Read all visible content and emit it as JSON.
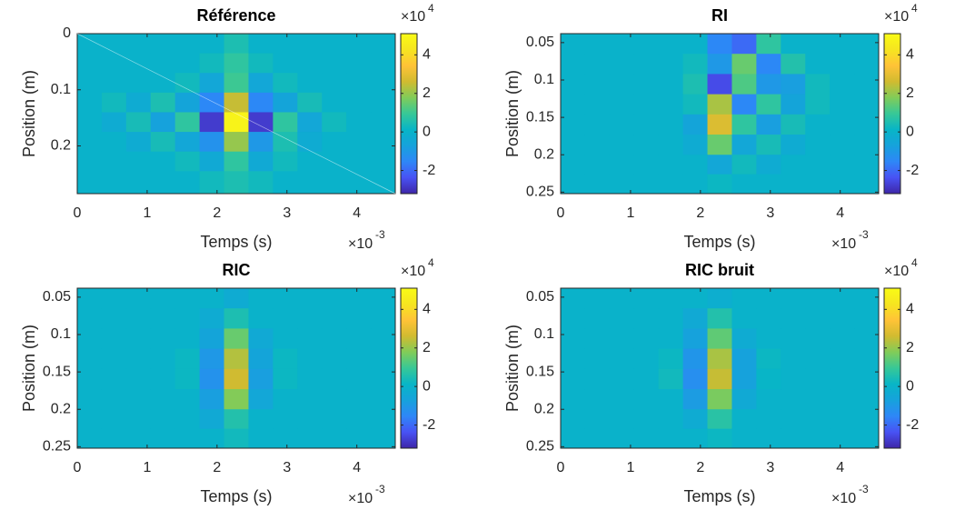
{
  "chart_data": [
    {
      "type": "heatmap",
      "title": "Référence",
      "xlabel": "Temps (s)",
      "ylabel": "Position (m)",
      "xlim": [
        0,
        4.55
      ],
      "ylim": [
        0,
        0.285
      ],
      "y_reversed": true,
      "xticks": [
        0,
        1,
        2,
        3,
        4
      ],
      "yticks": [
        0,
        0.1,
        0.2
      ],
      "x_exponent": {
        "base": "×10",
        "power": "-3"
      },
      "colormap": "parula",
      "clim": [
        -3.2,
        5.1
      ],
      "cticks": [
        -2,
        0,
        2,
        4
      ],
      "c_exponent": {
        "base": "×10",
        "power": "4"
      },
      "xbins": [
        0,
        0.35,
        0.7,
        1.05,
        1.4,
        1.75,
        2.1,
        2.45,
        2.8,
        3.15,
        3.5,
        3.85,
        4.2,
        4.55
      ],
      "ybins": [
        0,
        0.035,
        0.07,
        0.105,
        0.14,
        0.175,
        0.21,
        0.245,
        0.285
      ],
      "z": [
        [
          0,
          0,
          0,
          0,
          0,
          0,
          0.5,
          0,
          0,
          0,
          0,
          0,
          0
        ],
        [
          0,
          0,
          0,
          0,
          0,
          0.3,
          0.8,
          0.3,
          0,
          0,
          0,
          0,
          0
        ],
        [
          0,
          0,
          0,
          0,
          0.3,
          -0.5,
          1.0,
          -0.5,
          0.3,
          0,
          0,
          0,
          0
        ],
        [
          0,
          0.3,
          -0.3,
          0.5,
          -0.6,
          -1.5,
          2.5,
          -1.5,
          -0.6,
          0.4,
          0,
          0,
          0
        ],
        [
          0,
          -0.3,
          0.4,
          -0.7,
          0.8,
          -2.8,
          4.8,
          -2.8,
          0.8,
          -0.5,
          0.3,
          0,
          0
        ],
        [
          0,
          0,
          -0.3,
          0.4,
          -0.5,
          -1.2,
          2.0,
          -1.0,
          0.5,
          -0.3,
          0,
          0,
          0
        ],
        [
          0,
          0,
          0,
          0,
          0.3,
          -0.4,
          0.8,
          -0.4,
          0.3,
          0,
          0,
          0,
          0
        ],
        [
          0,
          0,
          0,
          0,
          0,
          0.3,
          0.5,
          0.3,
          0,
          0,
          0,
          0,
          0
        ]
      ]
    },
    {
      "type": "heatmap",
      "title": "RI",
      "xlabel": "Temps (s)",
      "ylabel": "Position (m)",
      "xlim": [
        0,
        4.55
      ],
      "ylim": [
        0.038,
        0.252
      ],
      "y_reversed": true,
      "xticks": [
        0,
        1,
        2,
        3,
        4
      ],
      "yticks": [
        0.05,
        0.1,
        0.15,
        0.2,
        0.25
      ],
      "x_exponent": {
        "base": "×10",
        "power": "-3"
      },
      "colormap": "parula",
      "clim": [
        -3.2,
        5.1
      ],
      "cticks": [
        -2,
        0,
        2,
        4
      ],
      "c_exponent": {
        "base": "×10",
        "power": "4"
      },
      "xbins": [
        0,
        0.35,
        0.7,
        1.05,
        1.4,
        1.75,
        2.1,
        2.45,
        2.8,
        3.15,
        3.5,
        3.85,
        4.2,
        4.55
      ],
      "ybins": [
        0.038,
        0.065,
        0.092,
        0.119,
        0.146,
        0.173,
        0.2,
        0.226,
        0.252
      ],
      "z": [
        [
          0,
          0,
          0,
          0,
          0,
          0,
          -1.5,
          -2.0,
          0.8,
          0,
          0,
          0,
          0
        ],
        [
          0,
          0,
          0,
          0,
          0,
          0.3,
          -1.0,
          1.5,
          -1.5,
          0.6,
          0,
          0,
          0
        ],
        [
          0,
          0,
          0,
          0,
          0,
          0.5,
          -2.5,
          1.2,
          -1.0,
          -0.8,
          0.3,
          0,
          0
        ],
        [
          0,
          0,
          0,
          0,
          0,
          0.3,
          2.2,
          -1.5,
          0.8,
          -0.6,
          0.3,
          0,
          0
        ],
        [
          0,
          0,
          0,
          0,
          0,
          -0.6,
          2.8,
          0.8,
          -0.8,
          0.4,
          0,
          0,
          0
        ],
        [
          0,
          0,
          0,
          0,
          0,
          -0.3,
          1.5,
          -0.5,
          0.4,
          -0.3,
          0,
          0,
          0
        ],
        [
          0,
          0,
          0,
          0,
          0,
          0,
          -0.5,
          0.3,
          -0.3,
          0,
          0,
          0,
          0
        ],
        [
          0,
          0,
          0,
          0,
          0,
          0,
          0.2,
          0,
          0,
          0,
          0,
          0,
          0
        ]
      ]
    },
    {
      "type": "heatmap",
      "title": "RIC",
      "xlabel": "Temps (s)",
      "ylabel": "Position (m)",
      "xlim": [
        0,
        4.55
      ],
      "ylim": [
        0.038,
        0.252
      ],
      "y_reversed": true,
      "xticks": [
        0,
        1,
        2,
        3,
        4
      ],
      "yticks": [
        0.05,
        0.1,
        0.15,
        0.2,
        0.25
      ],
      "x_exponent": {
        "base": "×10",
        "power": "-3"
      },
      "colormap": "parula",
      "clim": [
        -3.2,
        5.1
      ],
      "cticks": [
        -2,
        0,
        2,
        4
      ],
      "c_exponent": {
        "base": "×10",
        "power": "4"
      },
      "xbins": [
        0,
        0.35,
        0.7,
        1.05,
        1.4,
        1.75,
        2.1,
        2.45,
        2.8,
        3.15,
        3.5,
        3.85,
        4.2,
        4.55
      ],
      "ybins": [
        0.038,
        0.065,
        0.092,
        0.119,
        0.146,
        0.173,
        0.2,
        0.226,
        0.252
      ],
      "z": [
        [
          0,
          0,
          0,
          0,
          0,
          0,
          -0.3,
          0,
          0,
          0,
          0,
          0,
          0
        ],
        [
          0,
          0,
          0,
          0,
          0,
          -0.3,
          0.5,
          0,
          0,
          0,
          0,
          0,
          0
        ],
        [
          0,
          0,
          0,
          0,
          0,
          -0.6,
          1.5,
          -0.4,
          0,
          0,
          0,
          0,
          0
        ],
        [
          0,
          0,
          0,
          0,
          0.2,
          -1.0,
          2.3,
          -0.6,
          0.2,
          0,
          0,
          0,
          0
        ],
        [
          0,
          0,
          0,
          0,
          0.2,
          -1.2,
          2.6,
          -0.8,
          0.2,
          0,
          0,
          0,
          0
        ],
        [
          0,
          0,
          0,
          0,
          0,
          -0.8,
          1.8,
          -0.5,
          0,
          0,
          0,
          0,
          0
        ],
        [
          0,
          0,
          0,
          0,
          0,
          -0.4,
          0.6,
          0,
          0,
          0,
          0,
          0,
          0
        ],
        [
          0,
          0,
          0,
          0,
          0,
          0,
          0.3,
          0,
          0,
          0,
          0,
          0,
          0
        ]
      ]
    },
    {
      "type": "heatmap",
      "title": "RIC bruit",
      "xlabel": "Temps (s)",
      "ylabel": "Position (m)",
      "xlim": [
        0,
        4.55
      ],
      "ylim": [
        0.038,
        0.252
      ],
      "y_reversed": true,
      "xticks": [
        0,
        1,
        2,
        3,
        4
      ],
      "yticks": [
        0.05,
        0.1,
        0.15,
        0.2,
        0.25
      ],
      "x_exponent": {
        "base": "×10",
        "power": "-3"
      },
      "colormap": "parula",
      "clim": [
        -3.2,
        5.1
      ],
      "cticks": [
        -2,
        0,
        2,
        4
      ],
      "c_exponent": {
        "base": "×10",
        "power": "4"
      },
      "xbins": [
        0,
        0.35,
        0.7,
        1.05,
        1.4,
        1.75,
        2.1,
        2.45,
        2.8,
        3.15,
        3.5,
        3.85,
        4.2,
        4.55
      ],
      "ybins": [
        0.038,
        0.065,
        0.092,
        0.119,
        0.146,
        0.173,
        0.2,
        0.226,
        0.252
      ],
      "z": [
        [
          0,
          0,
          0,
          0,
          0,
          0,
          -0.2,
          0,
          0,
          0,
          0,
          0,
          0
        ],
        [
          0,
          0,
          0,
          0,
          0,
          -0.4,
          0.6,
          0,
          0,
          0,
          0,
          0,
          0
        ],
        [
          0,
          0,
          0,
          0,
          0,
          -0.7,
          1.4,
          -0.3,
          0,
          0,
          0,
          0,
          0
        ],
        [
          0,
          0,
          0,
          0,
          0.2,
          -1.1,
          2.2,
          -0.7,
          0.2,
          0,
          0,
          0,
          0
        ],
        [
          0,
          0,
          0,
          0,
          0.3,
          -1.3,
          2.5,
          -0.7,
          0.1,
          0,
          0,
          0,
          0
        ],
        [
          0,
          0,
          0,
          0,
          0,
          -0.9,
          1.7,
          -0.4,
          0,
          0,
          0,
          0,
          0
        ],
        [
          0,
          0,
          0,
          0,
          0,
          -0.3,
          0.7,
          0,
          0,
          0,
          0,
          0,
          0
        ],
        [
          0,
          0,
          0,
          0,
          0,
          0,
          0.2,
          0,
          0,
          0,
          0,
          0,
          0
        ]
      ]
    }
  ]
}
